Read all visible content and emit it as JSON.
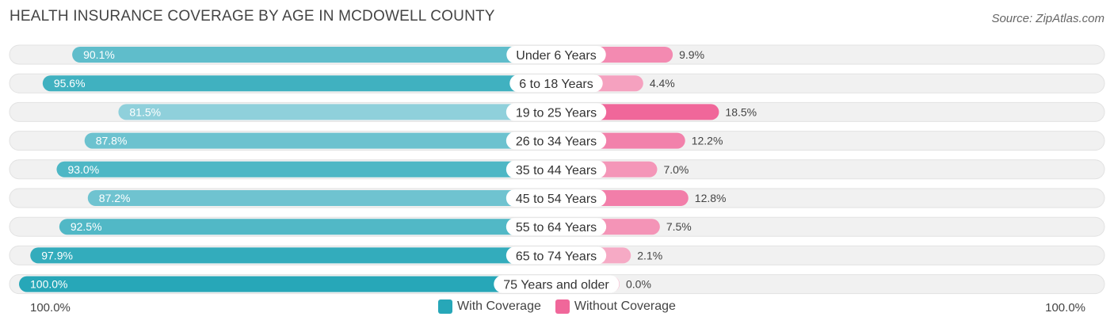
{
  "header": {
    "title": "HEALTH INSURANCE COVERAGE BY AGE IN MCDOWELL COUNTY",
    "source": "Source: ZipAtlas.com"
  },
  "colors": {
    "with_dark": "#27a7b8",
    "with_light": "#8fd0db",
    "without_dark": "#f0679a",
    "without_light": "#f7b3cb",
    "track": "#f1f1f1"
  },
  "chart_data": {
    "type": "bar",
    "orientation": "horizontal-diverging",
    "title": "HEALTH INSURANCE COVERAGE BY AGE IN MCDOWELL COUNTY",
    "categories": [
      "Under 6 Years",
      "6 to 18 Years",
      "19 to 25 Years",
      "26 to 34 Years",
      "35 to 44 Years",
      "45 to 54 Years",
      "55 to 64 Years",
      "65 to 74 Years",
      "75 Years and older"
    ],
    "series": [
      {
        "name": "With Coverage",
        "values": [
          90.1,
          95.6,
          81.5,
          87.8,
          93.0,
          87.2,
          92.5,
          97.9,
          100.0
        ],
        "labels": [
          "90.1%",
          "95.6%",
          "81.5%",
          "87.8%",
          "93.0%",
          "87.2%",
          "92.5%",
          "97.9%",
          "100.0%"
        ]
      },
      {
        "name": "Without Coverage",
        "values": [
          9.9,
          4.4,
          18.5,
          12.2,
          7.0,
          12.8,
          7.5,
          2.1,
          0.0
        ],
        "labels": [
          "9.9%",
          "4.4%",
          "18.5%",
          "12.2%",
          "7.0%",
          "12.8%",
          "7.5%",
          "2.1%",
          "0.0%"
        ]
      }
    ],
    "axis": {
      "left_label": "100.0%",
      "right_label": "100.0%",
      "range": [
        0,
        100
      ]
    },
    "legend": [
      "With Coverage",
      "Without Coverage"
    ],
    "legend_position": "bottom-center"
  }
}
